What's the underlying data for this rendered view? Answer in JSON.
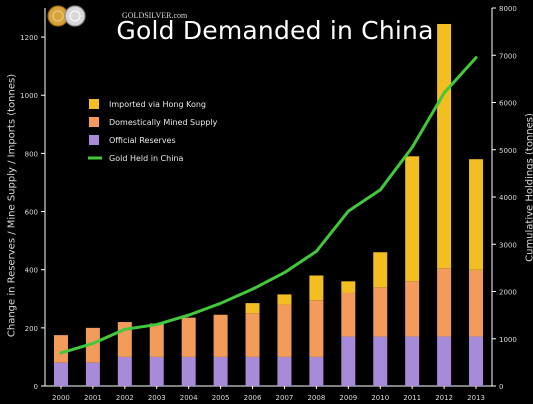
{
  "header": {
    "title": "Gold Demanded in China",
    "logo_text": "GOLDSILVER.com"
  },
  "chart_data": {
    "type": "bar",
    "title": "Gold Demanded in China",
    "categories": [
      "2000",
      "2001",
      "2002",
      "2003",
      "2004",
      "2005",
      "2006",
      "2007",
      "2008",
      "2009",
      "2010",
      "2011",
      "2012",
      "2013"
    ],
    "series": [
      {
        "name": "Official Reserves",
        "color": "#a78ad8",
        "values": [
          80,
          80,
          100,
          100,
          100,
          100,
          100,
          100,
          100,
          170,
          170,
          170,
          170,
          170
        ]
      },
      {
        "name": "Domestically Mined Supply",
        "color": "#f29b5a",
        "values": [
          95,
          120,
          120,
          115,
          135,
          145,
          150,
          180,
          195,
          150,
          170,
          190,
          235,
          230
        ]
      },
      {
        "name": "Imported via Hong Kong",
        "color": "#f2be22",
        "values": [
          0,
          0,
          0,
          0,
          0,
          0,
          35,
          35,
          85,
          40,
          120,
          430,
          840,
          380
        ]
      },
      {
        "name": "Gold Held in China",
        "type": "line",
        "axis": "right",
        "color": "#42c93b",
        "values": [
          700,
          900,
          1200,
          1300,
          1500,
          1750,
          2050,
          2400,
          2850,
          3700,
          4150,
          5050,
          6200,
          6950
        ]
      }
    ],
    "xlabel": "",
    "ylabel": "Change in Reserves / Mine Supply / Imports (tonnes)",
    "ylabel_right": "Cumulative Holdings (tonnes)",
    "ylim": [
      0,
      1300
    ],
    "y_ticks": [
      0,
      200,
      400,
      600,
      800,
      1000,
      1200
    ],
    "y2lim": [
      0,
      8000
    ],
    "y2_ticks": [
      0,
      1000,
      2000,
      3000,
      4000,
      5000,
      6000,
      7000,
      8000
    ],
    "grid": false,
    "legend_position": "top-left"
  }
}
